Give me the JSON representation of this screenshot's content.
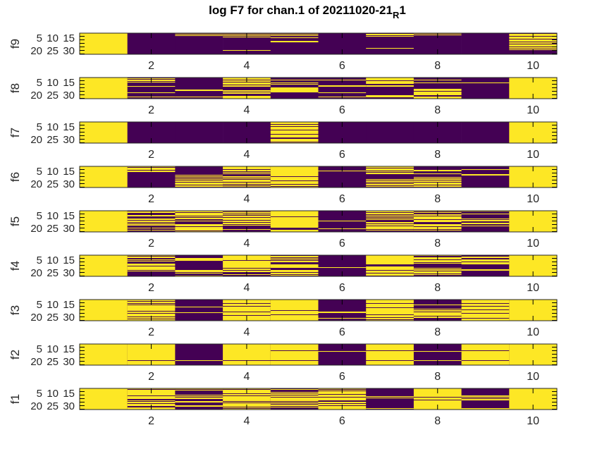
{
  "chart_data": {
    "type": "heatmap",
    "title": {
      "main": "log F7 for chan.1 of 20211020-21",
      "subscript": "R",
      "tail": "1"
    },
    "colors": {
      "high": "#FDE725",
      "low": "#440154"
    },
    "x_ticks": [
      "2",
      "4",
      "6",
      "8",
      "10"
    ],
    "x_tick_values": [
      2,
      4,
      6,
      8,
      10
    ],
    "xlim": [
      0.5,
      10.5
    ],
    "y_ticks": [
      "5",
      "10",
      "15",
      "20",
      "25",
      "30"
    ],
    "y_tick_values": [
      5,
      10,
      15,
      20,
      25,
      30
    ],
    "rows": 30,
    "panels": [
      {
        "label": "f9",
        "columns": [
          "111111111111111111111111111111",
          "000000000000000000000000000000",
          "010100000000000000000000000000",
          "010101000000000000000000100000",
          "010100100001100000000000000000",
          "000000000000000000000000000000",
          "011010000000000000000100000000",
          "101000000000000000000000000000",
          "000000000000000000000000000000",
          "011101110111011011101101000000"
        ]
      },
      {
        "label": "f8",
        "columns": [
          "111111111111111111111111111111",
          "010110100000100000000100000100",
          "000000000000000001100000000100",
          "111011011101100000110110001111",
          "000100010100001111111000000000",
          "000100000001100000000100000100",
          "111101111001100000000000011100",
          "000100010000000011101111100111",
          "000000010000000000000000000000",
          "111111111111111111111111111111"
        ]
      },
      {
        "label": "f7",
        "columns": [
          "111111111111111111111111111111",
          "000000000000000000000000000000",
          "000000000000000000000000000000",
          "000000000000000000000000000000",
          "111011011110111110111100111101",
          "000000000000000000000000000000",
          "000000000000000000000000000000",
          "000000000000000000000000000000",
          "000000000000000000000000000000",
          "111111111111111111111111111111"
        ]
      },
      {
        "label": "f6",
        "columns": [
          "111111111111111111111111111111",
          "101110110000000000000000000000",
          "000000000000101010101101110110",
          "111101101010001101011101101010",
          "111111111111110111110111101101",
          "000000100000000000000000000000",
          "110111010110000000101101011010",
          "000001100010000101101101110110",
          "000010000001100000000000000000",
          "111111111111111111111111111111"
        ]
      },
      {
        "label": "f5",
        "columns": [
          "111111111111111111111111111111",
          "011000110001101101011000100100",
          "110111101011001000011101111101",
          "101101011011101101101000001000",
          "111111110111111111111111000111",
          "000000000000001000000000010000",
          "110110101010100011011011110100",
          "101001101111011100011101110100",
          "100010000001011001100100000000",
          "111111111111111111111111111111"
        ]
      },
      {
        "label": "f4",
        "columns": [
          "111111111111111111111111111111",
          "101100101000111011111010000000",
          "000011110000000000000111010001",
          "111111101111111111011011000100",
          "011010101100011111000111011010",
          "000000000000000001000000000000",
          "111111111111100011111011101110",
          "100111011101000000101101110100",
          "001100111011100000001100000000",
          "111111111111111111111111111111"
        ]
      },
      {
        "label": "f3",
        "columns": [
          "111111111111111111111111111111",
          "110110101111111101101111011011",
          "000000000010000000100000000000",
          "111110111011111110111101111111",
          "111111111111111011111011111111",
          "000000000000000001100000001000",
          "111110111110111111111011101101",
          "000000010000010110111110110000",
          "111110111011110111101111110111",
          "111111111111111111111111111111"
        ]
      },
      {
        "label": "f2",
        "columns": [
          "111111111111111111111111111111",
          "111111111111111111111110111111",
          "000000000000000000000001000000",
          "111111111111111111111110111111",
          "111111111011111111111110111111",
          "000000000010000000000000000000",
          "111111111011111111111110111111",
          "000000000010000000000001000000",
          "111111111011111111111110111111",
          "111111111111111111111111111111"
        ]
      },
      {
        "label": "f1",
        "columns": [
          "111111111111111111111111111111",
          "101111111101111001011011100111",
          "101000000101011000110000110000",
          "101111101101111111010111110101",
          "010001011011011111010101101000",
          "101011110111011110011011011111",
          "000000000001010000000000000010",
          "111111111111011101111111111111",
          "000000000011010110000000000011",
          "111111111111111111111111111111"
        ]
      }
    ]
  }
}
